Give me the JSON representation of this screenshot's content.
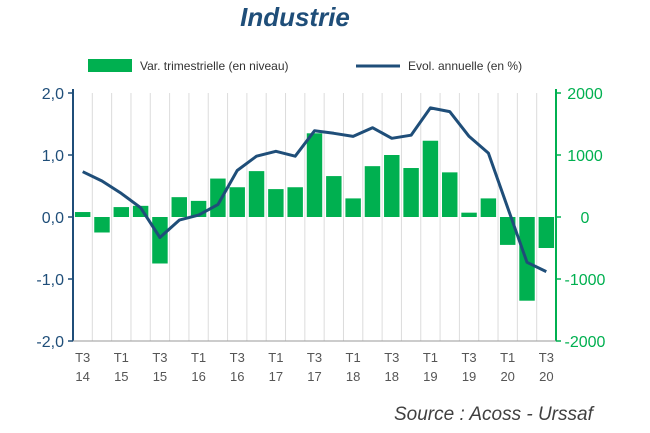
{
  "chart_data": {
    "type": "bar",
    "title": "Industrie",
    "source": "Source : Acoss - Urssaf",
    "colors": {
      "bars": "#00b050",
      "line": "#1f4e79",
      "left_axis": "#1f4e79",
      "right_axis": "#00b050",
      "grid": "#dcdcdc"
    },
    "legend": {
      "placement": "top",
      "bar_label": "Var. trimestrielle (en niveau)",
      "line_label": "Evol. annuelle (en %)"
    },
    "x_tick_labels": [
      {
        "index": 0,
        "line1": "T3",
        "line2": "14"
      },
      {
        "index": 2,
        "line1": "T1",
        "line2": "15"
      },
      {
        "index": 4,
        "line1": "T3",
        "line2": "15"
      },
      {
        "index": 6,
        "line1": "T1",
        "line2": "16"
      },
      {
        "index": 8,
        "line1": "T3",
        "line2": "16"
      },
      {
        "index": 10,
        "line1": "T1",
        "line2": "17"
      },
      {
        "index": 12,
        "line1": "T3",
        "line2": "17"
      },
      {
        "index": 14,
        "line1": "T1",
        "line2": "18"
      },
      {
        "index": 16,
        "line1": "T3",
        "line2": "18"
      },
      {
        "index": 18,
        "line1": "T1",
        "line2": "19"
      },
      {
        "index": 20,
        "line1": "T3",
        "line2": "19"
      },
      {
        "index": 22,
        "line1": "T1",
        "line2": "20"
      },
      {
        "index": 24,
        "line1": "T3",
        "line2": "20"
      }
    ],
    "left_axis": {
      "ylim": [
        -2.0,
        2.0
      ],
      "ticks": [
        "2,0",
        "1,0",
        "0,0",
        "-1,0",
        "-2,0"
      ],
      "tick_values": [
        2,
        1,
        0,
        -1,
        -2
      ]
    },
    "right_axis": {
      "ylim": [
        -2000,
        2000
      ],
      "ticks": [
        "2000",
        "1000",
        "0",
        "-1000",
        "-2000"
      ],
      "tick_values": [
        2000,
        1000,
        0,
        -1000,
        -2000
      ]
    },
    "series": [
      {
        "name": "Var. trimestrielle (en niveau)",
        "type": "bar",
        "axis": "right",
        "values": [
          80,
          -250,
          160,
          180,
          -750,
          320,
          260,
          620,
          480,
          740,
          450,
          480,
          1350,
          660,
          300,
          820,
          1000,
          790,
          1230,
          720,
          70,
          300,
          -450,
          -1350,
          -500
        ]
      },
      {
        "name": "Evol. annuelle (en %)",
        "type": "line",
        "axis": "left",
        "values": [
          0.73,
          0.58,
          0.38,
          0.15,
          -0.33,
          -0.05,
          0.03,
          0.2,
          0.75,
          0.98,
          1.06,
          0.98,
          1.39,
          1.35,
          1.3,
          1.44,
          1.27,
          1.32,
          1.76,
          1.7,
          1.3,
          1.03,
          0.15,
          -0.73,
          -0.88
        ]
      }
    ]
  }
}
